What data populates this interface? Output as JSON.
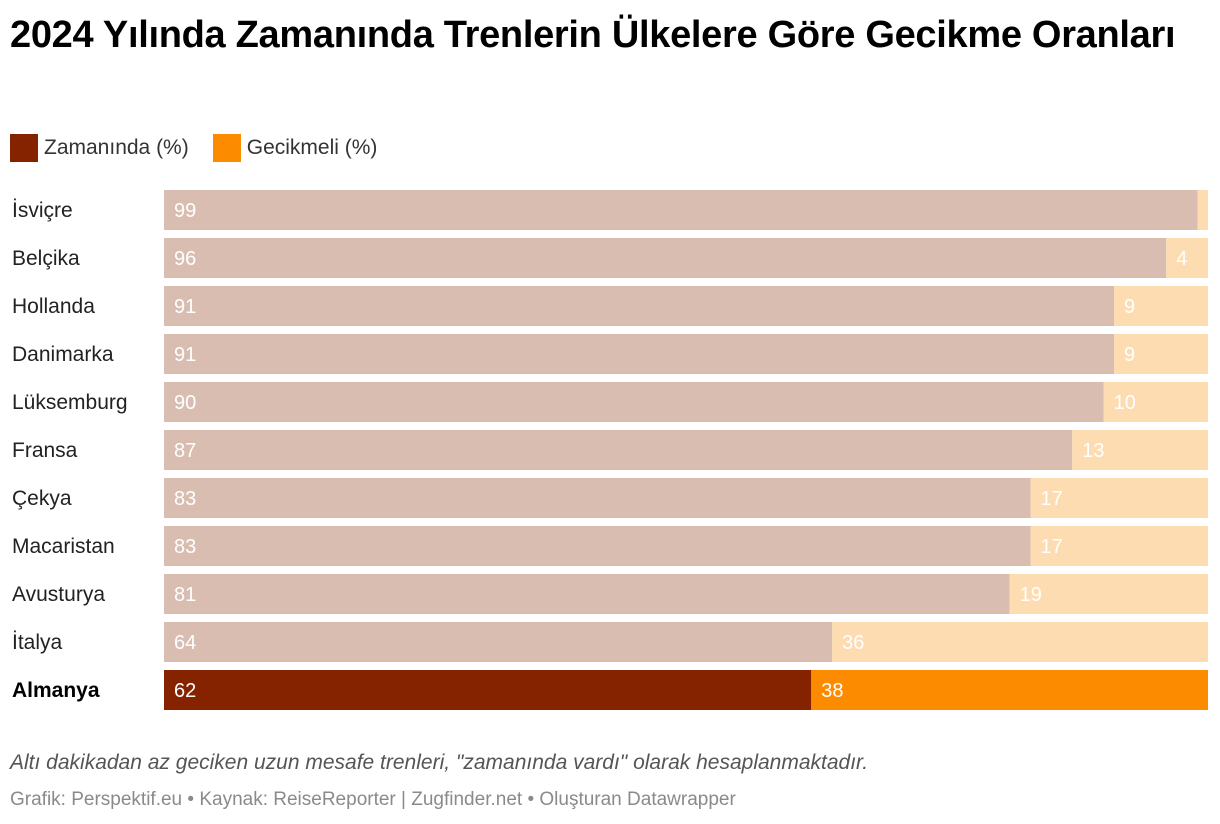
{
  "title": "2024 Yılında Zamanında Trenlerin Ülkelere Göre Gecikme Oranları",
  "legend": {
    "on_time": "Zamanında (%)",
    "delayed": "Gecikmeli (%)"
  },
  "colors": {
    "on_time_muted": "#d9bdb1",
    "delayed_muted": "#fcdcb0",
    "on_time_highlight": "#852300",
    "delayed_highlight": "#fd8b00",
    "legend_on_time": "#852300",
    "legend_delayed": "#fd8b00"
  },
  "chart_data": {
    "type": "bar",
    "orientation": "horizontal",
    "stacked": true,
    "title": "2024 Yılında Zamanında Trenlerin Ülkelere Göre Gecikme Oranları",
    "categories": [
      "İsviçre",
      "Belçika",
      "Hollanda",
      "Danimarka",
      "Lüksemburg",
      "Fransa",
      "Çekya",
      "Macaristan",
      "Avusturya",
      "İtalya",
      "Almanya"
    ],
    "series": [
      {
        "name": "Zamanında (%)",
        "values": [
          99,
          96,
          91,
          91,
          90,
          87,
          83,
          83,
          81,
          64,
          62
        ],
        "value_labels": [
          "99",
          "96",
          "91",
          "91",
          "90",
          "87",
          "83",
          "83",
          "81",
          "64",
          "62"
        ]
      },
      {
        "name": "Gecikmeli (%)",
        "values": [
          1,
          4,
          9,
          9,
          10,
          13,
          17,
          17,
          19,
          36,
          38
        ],
        "value_labels": [
          "",
          "4",
          "9",
          "9",
          "10",
          "13",
          "17",
          "17",
          "19",
          "36",
          "38"
        ]
      }
    ],
    "highlight": "Almanya",
    "xlim": [
      0,
      100
    ],
    "xlabel": "",
    "ylabel": ""
  },
  "note": "Altı dakikadan az geciken uzun mesafe trenleri, \"zamanında vardı\" olarak hesaplanmaktadır.",
  "footer": "Grafik: Perspektif.eu • Kaynak: ReiseReporter | Zugfinder.net • Oluşturan Datawrapper"
}
